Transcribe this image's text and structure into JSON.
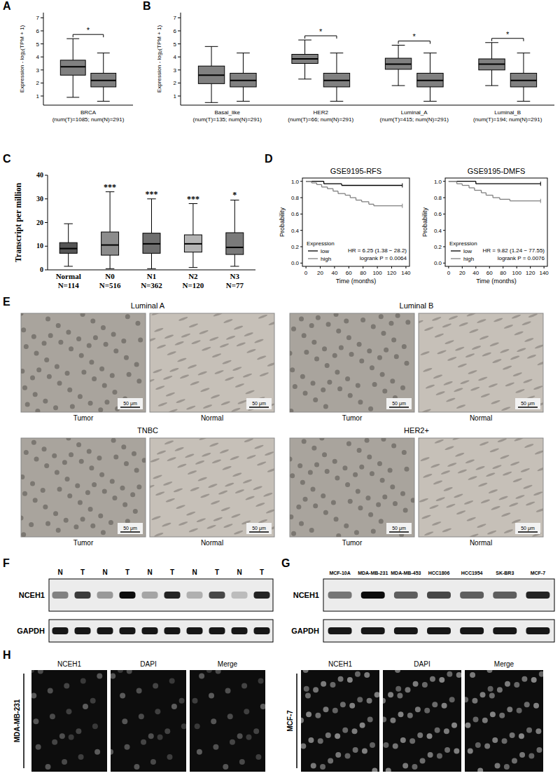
{
  "chart_data": [
    {
      "type": "box",
      "panel": "A",
      "y_label": "Expression - log₂(TPM + 1)",
      "categories": [
        "BRCA (num(T)=1085; num(N)=291)"
      ],
      "series": [
        {
          "color": "#808080",
          "values": [
            [
              0.9,
              2.6,
              3.25,
              3.75,
              5.4
            ]
          ]
        },
        {
          "color": "#808080",
          "values": [
            [
              0.6,
              1.7,
              2.2,
              2.75,
              4.3
            ]
          ]
        }
      ],
      "significance": [
        "*"
      ],
      "ylim": [
        0.3,
        7.4
      ],
      "yticks": [
        1,
        2,
        3,
        4,
        5,
        6,
        7
      ]
    },
    {
      "type": "box",
      "panel": "B",
      "y_label": "Expression - log₂(TPM + 1)",
      "categories": [
        "Basal_like (num(T)=135; num(N)=291)",
        "HER2 (num(T)=66; num(N)=291)",
        "Luminal_A (num(T)=415; num(N)=291)",
        "Luminal_B (num(T)=194; num(N)=291)"
      ],
      "series": [
        {
          "color": "#808080",
          "values": [
            [
              0.5,
              1.95,
              2.6,
              3.3,
              4.8
            ],
            [
              2.3,
              3.5,
              3.85,
              4.2,
              5.3
            ],
            [
              1.8,
              3.05,
              3.45,
              3.9,
              4.9
            ],
            [
              1.8,
              3.0,
              3.45,
              3.85,
              5.1
            ]
          ]
        },
        {
          "color": "#808080",
          "values": [
            [
              0.6,
              1.7,
              2.2,
              2.75,
              4.3
            ],
            [
              0.6,
              1.7,
              2.2,
              2.75,
              4.3
            ],
            [
              0.6,
              1.7,
              2.2,
              2.75,
              4.3
            ],
            [
              0.6,
              1.7,
              2.2,
              2.75,
              4.3
            ]
          ]
        }
      ],
      "significance": [
        null,
        "*",
        "*",
        "*"
      ],
      "ylim": [
        0.3,
        7.4
      ],
      "yticks": [
        1,
        2,
        3,
        4,
        5,
        6,
        7
      ]
    },
    {
      "type": "box",
      "panel": "C",
      "y_label": "Transcript per million",
      "categories": [
        "Normal N=114",
        "N0 N=516",
        "N1 N=362",
        "N2 N=120",
        "N3 N=77"
      ],
      "colors": [
        "#555555",
        "#8c8c8c",
        "#6e6e6e",
        "#b4b4b4",
        "#7a7a7a"
      ],
      "series": [
        {
          "values": [
            [
              1.5,
              7,
              9,
              11.5,
              19.5
            ],
            [
              0.5,
              6.2,
              10.5,
              16,
              33
            ],
            [
              0.5,
              7,
              11,
              15.5,
              30
            ],
            [
              1,
              7.5,
              11,
              14.8,
              28
            ],
            [
              1.5,
              6.5,
              9.5,
              15.7,
              29.5
            ]
          ]
        }
      ],
      "significance": [
        null,
        "***",
        "***",
        "***",
        "*"
      ],
      "ylim": [
        0,
        40
      ],
      "yticks": [
        0,
        10,
        20,
        30,
        40
      ]
    },
    {
      "type": "line",
      "panel": "D",
      "line_style": "step",
      "title": "GSE9195-RFS",
      "x_label": "Time (months)",
      "y_label": "Probability",
      "legend": "bottom-left",
      "legend_title": "Expression",
      "series": [
        {
          "name": "low",
          "color": "#000000",
          "x": [
            0,
            25,
            50,
            135
          ],
          "values": [
            1,
            0.97,
            0.95,
            0.95
          ]
        },
        {
          "name": "high",
          "color": "#808080",
          "x": [
            0,
            8,
            15,
            22,
            30,
            38,
            45,
            55,
            62,
            70,
            78,
            88,
            95,
            135
          ],
          "values": [
            1,
            0.98,
            0.96,
            0.93,
            0.91,
            0.88,
            0.85,
            0.83,
            0.8,
            0.77,
            0.75,
            0.72,
            0.7,
            0.7
          ]
        }
      ],
      "annotations": [
        "HR = 6.25 (1.38 − 28.2)",
        "logrank P = 0.0064"
      ],
      "xlim": [
        -5,
        145
      ],
      "xticks": [
        0,
        20,
        40,
        60,
        80,
        100,
        120,
        140
      ],
      "ylim": [
        -0.04,
        1.04
      ],
      "yticks": [
        {
          "value": 0,
          "label": "0.0"
        },
        0.2,
        0.4,
        0.6,
        0.8,
        {
          "value": 1,
          "label": "1.0"
        }
      ]
    },
    {
      "type": "line",
      "line_style": "step",
      "title": "GSE9195-DMFS",
      "x_label": "Time (months)",
      "y_label": "Probability",
      "legend": "bottom-left",
      "legend_title": "Expression",
      "series": [
        {
          "name": "low",
          "color": "#000000",
          "x": [
            0,
            40,
            135
          ],
          "values": [
            1,
            0.97,
            0.97
          ]
        },
        {
          "name": "high",
          "color": "#808080",
          "x": [
            0,
            12,
            20,
            30,
            38,
            48,
            55,
            65,
            75,
            90,
            135
          ],
          "values": [
            1,
            0.97,
            0.95,
            0.92,
            0.89,
            0.86,
            0.83,
            0.8,
            0.78,
            0.76,
            0.76
          ]
        }
      ],
      "annotations": [
        "HR = 9.82 (1.24 − 77.55)",
        "logrank P = 0.0076"
      ],
      "xlim": [
        -5,
        145
      ],
      "xticks": [
        0,
        20,
        40,
        60,
        80,
        100,
        120,
        140
      ],
      "ylim": [
        -0.04,
        1.04
      ],
      "yticks": [
        {
          "value": 0,
          "label": "0.0"
        },
        0.2,
        0.4,
        0.6,
        0.8,
        {
          "value": 1,
          "label": "1.0"
        }
      ]
    }
  ],
  "ihc": {
    "panel": "E",
    "scale_bar": "50 μm",
    "groups": [
      {
        "title": "Luminal A",
        "images": [
          "Tumor",
          "Normal"
        ]
      },
      {
        "title": "Luminal B",
        "images": [
          "Tumor",
          "Normal"
        ]
      },
      {
        "title": "TNBC",
        "images": [
          "Tumor",
          "Normal"
        ]
      },
      {
        "title": "HER2+",
        "images": [
          "Tumor",
          "Normal"
        ]
      }
    ]
  },
  "western_tissue": {
    "panel": "F",
    "lanes": [
      "N",
      "T",
      "N",
      "T",
      "N",
      "T",
      "N",
      "T",
      "N",
      "T"
    ],
    "rows": [
      {
        "label": "NCEH1",
        "intensity": [
          0.45,
          0.75,
          0.35,
          0.95,
          0.3,
          0.85,
          0.25,
          0.7,
          0.2,
          0.85
        ]
      },
      {
        "label": "GAPDH",
        "intensity": [
          0.9,
          0.9,
          0.9,
          0.9,
          0.9,
          0.9,
          0.9,
          0.9,
          0.9,
          0.9
        ]
      }
    ]
  },
  "western_cells": {
    "panel": "G",
    "lanes": [
      "MCF-10A",
      "MDA-MB-231",
      "MDA-MB-453",
      "HCC1806",
      "HCC1954",
      "SK-BR3",
      "MCF-7"
    ],
    "rows": [
      {
        "label": "NCEH1",
        "intensity": [
          0.5,
          0.95,
          0.6,
          0.7,
          0.6,
          0.6,
          0.85
        ]
      },
      {
        "label": "GAPDH",
        "intensity": [
          0.9,
          0.9,
          0.9,
          0.9,
          0.9,
          0.9,
          0.9
        ]
      }
    ]
  },
  "immunofluorescence": {
    "panel": "H",
    "groups": [
      {
        "cell_line": "MDA-MB-231",
        "channels": [
          "NCEH1",
          "DAPI",
          "Merge"
        ]
      },
      {
        "cell_line": "MCF-7",
        "channels": [
          "NCEH1",
          "DAPI",
          "Merge"
        ]
      }
    ]
  }
}
